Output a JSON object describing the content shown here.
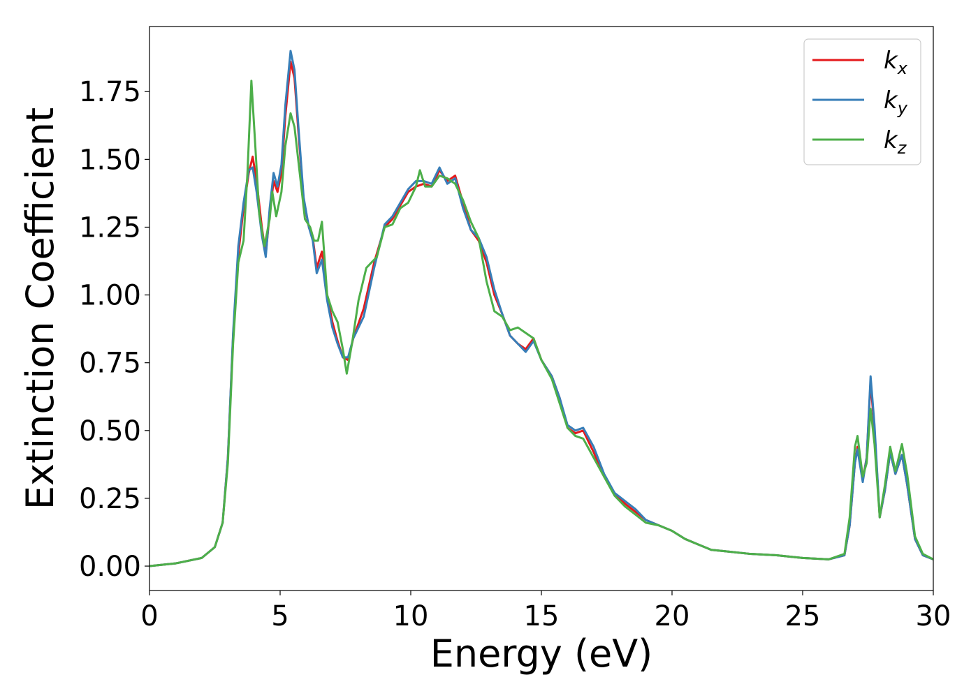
{
  "chart_data": {
    "type": "line",
    "title": "",
    "xlabel": "Energy (eV)",
    "ylabel": "Extinction Coefficient",
    "xlim": [
      0,
      30
    ],
    "ylim": [
      -0.09,
      1.99
    ],
    "xticks": [
      0,
      5,
      10,
      15,
      20,
      25,
      30
    ],
    "xtick_labels": [
      "0",
      "5",
      "10",
      "15",
      "20",
      "25",
      "30"
    ],
    "yticks": [
      0.0,
      0.25,
      0.5,
      0.75,
      1.0,
      1.25,
      1.5,
      1.75
    ],
    "ytick_labels": [
      "0.00",
      "0.25",
      "0.50",
      "0.75",
      "1.00",
      "1.25",
      "1.50",
      "1.75"
    ],
    "grid": false,
    "legend_position": "top-right",
    "series": [
      {
        "name": "k",
        "subscript": "x",
        "color": "#e41a1c",
        "points": [
          [
            0,
            0.0
          ],
          [
            1,
            0.01
          ],
          [
            2,
            0.03
          ],
          [
            2.5,
            0.07
          ],
          [
            2.8,
            0.16
          ],
          [
            3.0,
            0.4
          ],
          [
            3.2,
            0.85
          ],
          [
            3.4,
            1.15
          ],
          [
            3.6,
            1.32
          ],
          [
            3.8,
            1.45
          ],
          [
            3.95,
            1.51
          ],
          [
            4.1,
            1.42
          ],
          [
            4.3,
            1.25
          ],
          [
            4.45,
            1.15
          ],
          [
            4.6,
            1.3
          ],
          [
            4.75,
            1.42
          ],
          [
            4.9,
            1.38
          ],
          [
            5.05,
            1.45
          ],
          [
            5.2,
            1.66
          ],
          [
            5.4,
            1.86
          ],
          [
            5.55,
            1.8
          ],
          [
            5.7,
            1.6
          ],
          [
            5.9,
            1.35
          ],
          [
            6.1,
            1.25
          ],
          [
            6.25,
            1.21
          ],
          [
            6.4,
            1.1
          ],
          [
            6.6,
            1.16
          ],
          [
            6.8,
            1.0
          ],
          [
            7.0,
            0.9
          ],
          [
            7.2,
            0.83
          ],
          [
            7.4,
            0.77
          ],
          [
            7.6,
            0.76
          ],
          [
            7.8,
            0.84
          ],
          [
            8.2,
            0.95
          ],
          [
            8.6,
            1.12
          ],
          [
            9.0,
            1.25
          ],
          [
            9.3,
            1.28
          ],
          [
            9.6,
            1.33
          ],
          [
            9.9,
            1.38
          ],
          [
            10.2,
            1.4
          ],
          [
            10.5,
            1.41
          ],
          [
            10.8,
            1.4
          ],
          [
            11.1,
            1.46
          ],
          [
            11.4,
            1.42
          ],
          [
            11.7,
            1.44
          ],
          [
            12.0,
            1.34
          ],
          [
            12.3,
            1.24
          ],
          [
            12.6,
            1.2
          ],
          [
            12.9,
            1.12
          ],
          [
            13.2,
            1.0
          ],
          [
            13.5,
            0.93
          ],
          [
            13.8,
            0.85
          ],
          [
            14.1,
            0.82
          ],
          [
            14.4,
            0.8
          ],
          [
            14.7,
            0.84
          ],
          [
            15.0,
            0.76
          ],
          [
            15.4,
            0.7
          ],
          [
            15.7,
            0.62
          ],
          [
            16.0,
            0.51
          ],
          [
            16.3,
            0.49
          ],
          [
            16.6,
            0.5
          ],
          [
            17.0,
            0.42
          ],
          [
            17.4,
            0.33
          ],
          [
            17.8,
            0.27
          ],
          [
            18.2,
            0.23
          ],
          [
            18.6,
            0.2
          ],
          [
            19.0,
            0.17
          ],
          [
            19.5,
            0.15
          ],
          [
            20.0,
            0.13
          ],
          [
            20.5,
            0.1
          ],
          [
            21.0,
            0.08
          ],
          [
            21.5,
            0.06
          ],
          [
            22.0,
            0.055
          ],
          [
            23.0,
            0.045
          ],
          [
            24.0,
            0.04
          ],
          [
            25.0,
            0.03
          ],
          [
            26.0,
            0.025
          ],
          [
            26.6,
            0.04
          ],
          [
            26.8,
            0.15
          ],
          [
            27.0,
            0.38
          ],
          [
            27.1,
            0.44
          ],
          [
            27.3,
            0.32
          ],
          [
            27.45,
            0.4
          ],
          [
            27.6,
            0.68
          ],
          [
            27.75,
            0.5
          ],
          [
            27.95,
            0.18
          ],
          [
            28.15,
            0.28
          ],
          [
            28.35,
            0.42
          ],
          [
            28.55,
            0.34
          ],
          [
            28.8,
            0.41
          ],
          [
            29.0,
            0.3
          ],
          [
            29.3,
            0.1
          ],
          [
            29.6,
            0.04
          ],
          [
            30,
            0.025
          ]
        ]
      },
      {
        "name": "k",
        "subscript": "y",
        "color": "#377eb8",
        "points": [
          [
            0,
            0.0
          ],
          [
            1,
            0.01
          ],
          [
            2,
            0.03
          ],
          [
            2.5,
            0.07
          ],
          [
            2.8,
            0.16
          ],
          [
            3.0,
            0.4
          ],
          [
            3.2,
            0.86
          ],
          [
            3.4,
            1.18
          ],
          [
            3.6,
            1.34
          ],
          [
            3.8,
            1.46
          ],
          [
            3.95,
            1.47
          ],
          [
            4.1,
            1.38
          ],
          [
            4.3,
            1.22
          ],
          [
            4.45,
            1.14
          ],
          [
            4.6,
            1.32
          ],
          [
            4.75,
            1.45
          ],
          [
            4.9,
            1.4
          ],
          [
            5.05,
            1.48
          ],
          [
            5.2,
            1.7
          ],
          [
            5.4,
            1.9
          ],
          [
            5.55,
            1.83
          ],
          [
            5.7,
            1.62
          ],
          [
            5.9,
            1.36
          ],
          [
            6.1,
            1.25
          ],
          [
            6.25,
            1.2
          ],
          [
            6.4,
            1.08
          ],
          [
            6.6,
            1.13
          ],
          [
            6.8,
            0.98
          ],
          [
            7.0,
            0.88
          ],
          [
            7.2,
            0.82
          ],
          [
            7.4,
            0.77
          ],
          [
            7.6,
            0.77
          ],
          [
            7.8,
            0.84
          ],
          [
            8.2,
            0.92
          ],
          [
            8.6,
            1.1
          ],
          [
            9.0,
            1.26
          ],
          [
            9.3,
            1.29
          ],
          [
            9.6,
            1.34
          ],
          [
            9.9,
            1.39
          ],
          [
            10.2,
            1.42
          ],
          [
            10.5,
            1.42
          ],
          [
            10.8,
            1.41
          ],
          [
            11.1,
            1.47
          ],
          [
            11.4,
            1.41
          ],
          [
            11.7,
            1.43
          ],
          [
            12.0,
            1.32
          ],
          [
            12.3,
            1.24
          ],
          [
            12.6,
            1.21
          ],
          [
            12.9,
            1.14
          ],
          [
            13.2,
            1.02
          ],
          [
            13.5,
            0.93
          ],
          [
            13.8,
            0.85
          ],
          [
            14.1,
            0.82
          ],
          [
            14.4,
            0.79
          ],
          [
            14.7,
            0.83
          ],
          [
            15.0,
            0.76
          ],
          [
            15.4,
            0.7
          ],
          [
            15.7,
            0.62
          ],
          [
            16.0,
            0.52
          ],
          [
            16.3,
            0.5
          ],
          [
            16.6,
            0.51
          ],
          [
            17.0,
            0.44
          ],
          [
            17.4,
            0.34
          ],
          [
            17.8,
            0.27
          ],
          [
            18.2,
            0.24
          ],
          [
            18.6,
            0.21
          ],
          [
            19.0,
            0.17
          ],
          [
            19.5,
            0.15
          ],
          [
            20.0,
            0.13
          ],
          [
            20.5,
            0.1
          ],
          [
            21.0,
            0.08
          ],
          [
            21.5,
            0.06
          ],
          [
            22.0,
            0.055
          ],
          [
            23.0,
            0.045
          ],
          [
            24.0,
            0.04
          ],
          [
            25.0,
            0.03
          ],
          [
            26.0,
            0.025
          ],
          [
            26.6,
            0.04
          ],
          [
            26.8,
            0.15
          ],
          [
            27.0,
            0.38
          ],
          [
            27.1,
            0.43
          ],
          [
            27.3,
            0.31
          ],
          [
            27.45,
            0.4
          ],
          [
            27.6,
            0.7
          ],
          [
            27.75,
            0.52
          ],
          [
            27.95,
            0.18
          ],
          [
            28.15,
            0.28
          ],
          [
            28.35,
            0.42
          ],
          [
            28.55,
            0.34
          ],
          [
            28.8,
            0.41
          ],
          [
            29.0,
            0.3
          ],
          [
            29.3,
            0.1
          ],
          [
            29.6,
            0.04
          ],
          [
            30,
            0.025
          ]
        ]
      },
      {
        "name": "k",
        "subscript": "z",
        "color": "#4daf4a",
        "points": [
          [
            0,
            0.0
          ],
          [
            1,
            0.01
          ],
          [
            2,
            0.03
          ],
          [
            2.5,
            0.07
          ],
          [
            2.8,
            0.16
          ],
          [
            3.0,
            0.38
          ],
          [
            3.2,
            0.82
          ],
          [
            3.4,
            1.12
          ],
          [
            3.6,
            1.2
          ],
          [
            3.75,
            1.45
          ],
          [
            3.9,
            1.79
          ],
          [
            4.05,
            1.55
          ],
          [
            4.2,
            1.3
          ],
          [
            4.4,
            1.18
          ],
          [
            4.6,
            1.28
          ],
          [
            4.7,
            1.38
          ],
          [
            4.85,
            1.29
          ],
          [
            5.05,
            1.38
          ],
          [
            5.2,
            1.55
          ],
          [
            5.4,
            1.67
          ],
          [
            5.55,
            1.62
          ],
          [
            5.75,
            1.45
          ],
          [
            5.95,
            1.28
          ],
          [
            6.15,
            1.25
          ],
          [
            6.3,
            1.2
          ],
          [
            6.45,
            1.2
          ],
          [
            6.6,
            1.27
          ],
          [
            6.8,
            1.0
          ],
          [
            7.0,
            0.94
          ],
          [
            7.2,
            0.9
          ],
          [
            7.4,
            0.8
          ],
          [
            7.55,
            0.71
          ],
          [
            7.75,
            0.82
          ],
          [
            8.0,
            0.98
          ],
          [
            8.3,
            1.1
          ],
          [
            8.7,
            1.14
          ],
          [
            9.0,
            1.25
          ],
          [
            9.3,
            1.26
          ],
          [
            9.6,
            1.32
          ],
          [
            9.9,
            1.34
          ],
          [
            10.2,
            1.4
          ],
          [
            10.35,
            1.46
          ],
          [
            10.55,
            1.4
          ],
          [
            10.8,
            1.4
          ],
          [
            11.1,
            1.44
          ],
          [
            11.4,
            1.43
          ],
          [
            11.7,
            1.41
          ],
          [
            12.0,
            1.35
          ],
          [
            12.3,
            1.27
          ],
          [
            12.6,
            1.21
          ],
          [
            12.9,
            1.05
          ],
          [
            13.2,
            0.94
          ],
          [
            13.5,
            0.92
          ],
          [
            13.8,
            0.87
          ],
          [
            14.1,
            0.88
          ],
          [
            14.4,
            0.86
          ],
          [
            14.7,
            0.84
          ],
          [
            15.0,
            0.76
          ],
          [
            15.4,
            0.69
          ],
          [
            15.7,
            0.6
          ],
          [
            16.0,
            0.51
          ],
          [
            16.3,
            0.48
          ],
          [
            16.6,
            0.47
          ],
          [
            17.0,
            0.4
          ],
          [
            17.4,
            0.33
          ],
          [
            17.8,
            0.26
          ],
          [
            18.2,
            0.22
          ],
          [
            18.6,
            0.19
          ],
          [
            19.0,
            0.16
          ],
          [
            19.5,
            0.15
          ],
          [
            20.0,
            0.13
          ],
          [
            20.5,
            0.1
          ],
          [
            21.0,
            0.08
          ],
          [
            21.5,
            0.06
          ],
          [
            22.0,
            0.055
          ],
          [
            23.0,
            0.045
          ],
          [
            24.0,
            0.04
          ],
          [
            25.0,
            0.03
          ],
          [
            26.0,
            0.025
          ],
          [
            26.6,
            0.045
          ],
          [
            26.8,
            0.18
          ],
          [
            27.0,
            0.44
          ],
          [
            27.1,
            0.48
          ],
          [
            27.3,
            0.33
          ],
          [
            27.45,
            0.38
          ],
          [
            27.6,
            0.58
          ],
          [
            27.75,
            0.45
          ],
          [
            27.95,
            0.18
          ],
          [
            28.15,
            0.3
          ],
          [
            28.35,
            0.44
          ],
          [
            28.55,
            0.35
          ],
          [
            28.8,
            0.45
          ],
          [
            29.0,
            0.34
          ],
          [
            29.3,
            0.11
          ],
          [
            29.6,
            0.045
          ],
          [
            30,
            0.025
          ]
        ]
      }
    ]
  }
}
